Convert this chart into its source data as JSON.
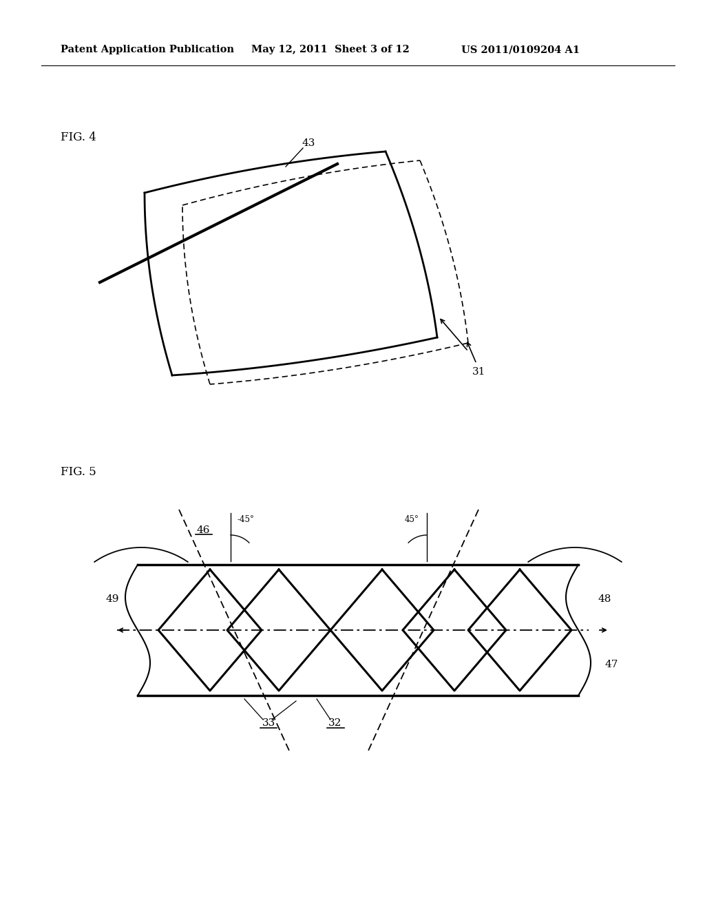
{
  "bg_color": "#ffffff",
  "header_text1": "Patent Application Publication",
  "header_text2": "May 12, 2011  Sheet 3 of 12",
  "header_text3": "US 2011/0109204 A1",
  "fig4_label": "FIG. 4",
  "fig5_label": "FIG. 5",
  "label_43": "43",
  "label_31": "31",
  "label_46": "46",
  "label_47": "47",
  "label_48": "48",
  "label_49": "49",
  "label_33": "33",
  "label_32": "32",
  "label_45a": "-45°",
  "label_45b": "45°"
}
